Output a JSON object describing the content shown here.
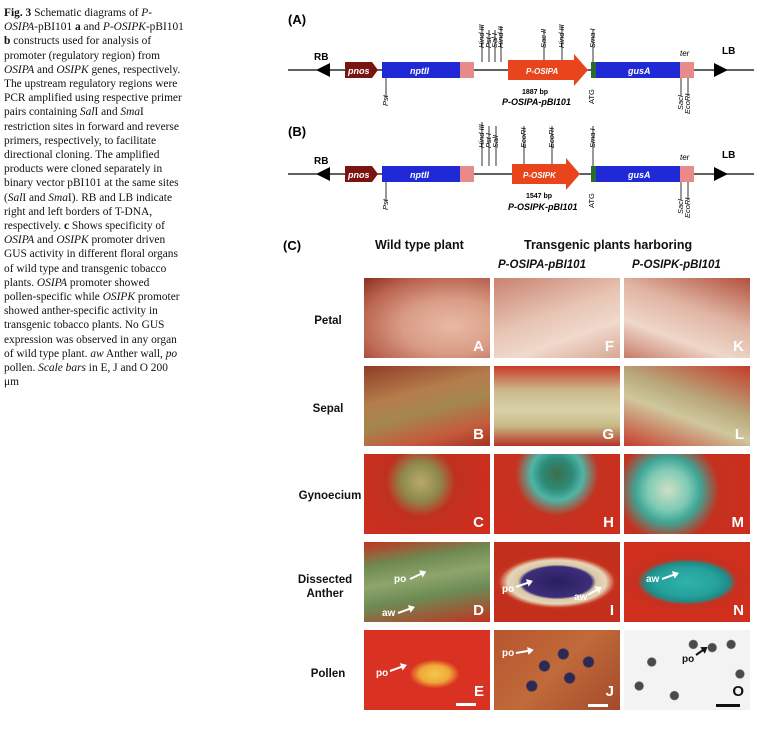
{
  "caption": {
    "fig": "Fig. 3",
    "p1": " Schematic diagrams of ",
    "i1": "P-OSIPA",
    "p2": "-pBI101 ",
    "b1": "a",
    "p3": " and ",
    "i2": "P-OSIPK",
    "p4": "-pBI101 ",
    "b2": "b",
    "p5": " constructs used for analysis of promoter (regulatory region) from ",
    "i3": "OSIPA",
    "p6": " and ",
    "i4": "OSIPK",
    "p7": " genes, respectively. The upstream regulatory regions were PCR amplified using respective primer pairs containing ",
    "i5": "Sal",
    "p8": "I and ",
    "i6": "Sma",
    "p9": "I restriction sites in forward and reverse primers, respectively, to facilitate directional cloning. The amplified products were cloned separately in binary vector pBI101 at the same sites (",
    "i7": "Sal",
    "p10": "I and ",
    "i8": "Sma",
    "p11": "I). RB and LB indicate right and left borders of T-DNA, respectively. ",
    "b3": "c",
    "p12": " Shows specificity of ",
    "i9": "OSIPA",
    "p13": " and ",
    "i10": "OSIPK",
    "p14": " promoter driven GUS activity in different floral organs of wild type and transgenic tobacco plants. ",
    "i11": "OSIPA",
    "p15": " promoter showed pollen-specific while ",
    "i12": "OSIPK",
    "p16": " promoter showed anther-specific activity in transgenic tobacco plants. No GUS expression was observed in any organ of wild type plant. ",
    "i13": "aw",
    "p17": " Anther wall, ",
    "i14": "po",
    "p18": " pollen. ",
    "i15": "Scale bars",
    "p19": " in E, J and O 200 μm"
  },
  "panelA": {
    "label": "(A)",
    "rb": "RB",
    "lb": "LB",
    "pnos": "pnos",
    "nptII": "nptII",
    "promoter": "P-OSIPA",
    "gus": "gusA",
    "ter": "ter",
    "size": "1887 bp",
    "construct": "P-OSIPA-pBI101",
    "sites_top": [
      "Hind III",
      "Pst I",
      "Sal I",
      "Hind II",
      "Sac II",
      "Hind III",
      "Sma I"
    ],
    "pst": "Pst",
    "atg": "ATG",
    "sac": "SacI",
    "eco": "EcoRI"
  },
  "panelB": {
    "label": "(B)",
    "rb": "RB",
    "lb": "LB",
    "pnos": "pnos",
    "nptII": "nptII",
    "promoter": "P-OSIPK",
    "gus": "gusA",
    "ter": "ter",
    "size": "1547 bp",
    "construct": "P-OSIPK-pBI101",
    "sites_top": [
      "Hind III",
      "Pst I",
      "SalI",
      "EcoRI",
      "EcoRI",
      "Sma I"
    ],
    "pst": "Pst",
    "atg": "ATG",
    "sac": "SacI",
    "eco": "EcoRI"
  },
  "panelC": {
    "label": "(C)",
    "wild": "Wild type plant",
    "transgenic": "Transgenic plants harboring",
    "col2": "P-OSIPA-pBI101",
    "col3": "P-OSIPK-pBI101",
    "rows": [
      "Petal",
      "Sepal",
      "Gynoecium",
      "Dissected\nAnther",
      "Pollen"
    ],
    "letters": [
      "A",
      "B",
      "C",
      "D",
      "E",
      "F",
      "G",
      "H",
      "I",
      "J",
      "K",
      "L",
      "M",
      "N",
      "O"
    ],
    "po": "po",
    "aw": "aw"
  },
  "colors": {
    "promoter": "#e8451c",
    "nptII": "#1f2ad6",
    "gus": "#1f2ad6",
    "pnos": "#7a1410",
    "ter": "#e88a8a",
    "atg": "#2b6b2b"
  }
}
